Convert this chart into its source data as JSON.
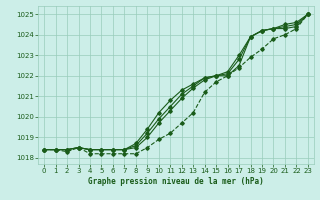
{
  "xlabel": "Graphe pression niveau de la mer (hPa)",
  "ylim": [
    1017.7,
    1025.4
  ],
  "xlim": [
    -0.5,
    23.5
  ],
  "yticks": [
    1018,
    1019,
    1020,
    1021,
    1022,
    1023,
    1024,
    1025
  ],
  "xticks": [
    0,
    1,
    2,
    3,
    4,
    5,
    6,
    7,
    8,
    9,
    10,
    11,
    12,
    13,
    14,
    15,
    16,
    17,
    18,
    19,
    20,
    21,
    22,
    23
  ],
  "bg_color": "#cceee8",
  "grid_color": "#99ccbb",
  "line_color": "#1a5c1a",
  "line1": [
    1018.4,
    1018.4,
    1018.4,
    1018.5,
    1018.4,
    1018.4,
    1018.4,
    1018.4,
    1018.5,
    1019.0,
    1019.7,
    1020.3,
    1020.9,
    1021.4,
    1021.8,
    1022.0,
    1022.0,
    1022.5,
    1023.9,
    1024.2,
    1024.3,
    1024.3,
    1024.4,
    1025.0
  ],
  "line2": [
    1018.4,
    1018.4,
    1018.4,
    1018.5,
    1018.4,
    1018.4,
    1018.4,
    1018.4,
    1018.6,
    1019.2,
    1019.9,
    1020.5,
    1021.1,
    1021.5,
    1021.9,
    1022.0,
    1022.1,
    1022.8,
    1023.9,
    1024.2,
    1024.3,
    1024.4,
    1024.5,
    1025.0
  ],
  "line3": [
    1018.4,
    1018.4,
    1018.4,
    1018.5,
    1018.4,
    1018.4,
    1018.4,
    1018.4,
    1018.7,
    1019.4,
    1020.2,
    1020.8,
    1021.3,
    1021.6,
    1021.9,
    1022.0,
    1022.2,
    1023.0,
    1023.9,
    1024.2,
    1024.3,
    1024.5,
    1024.6,
    1025.0
  ],
  "line4": [
    1018.4,
    1018.4,
    1018.3,
    1018.5,
    1018.2,
    1018.2,
    1018.2,
    1018.2,
    1018.2,
    1018.5,
    1018.9,
    1019.2,
    1019.7,
    1020.2,
    1021.2,
    1021.7,
    1022.0,
    1022.4,
    1022.9,
    1023.3,
    1023.8,
    1024.0,
    1024.3,
    1025.0
  ]
}
